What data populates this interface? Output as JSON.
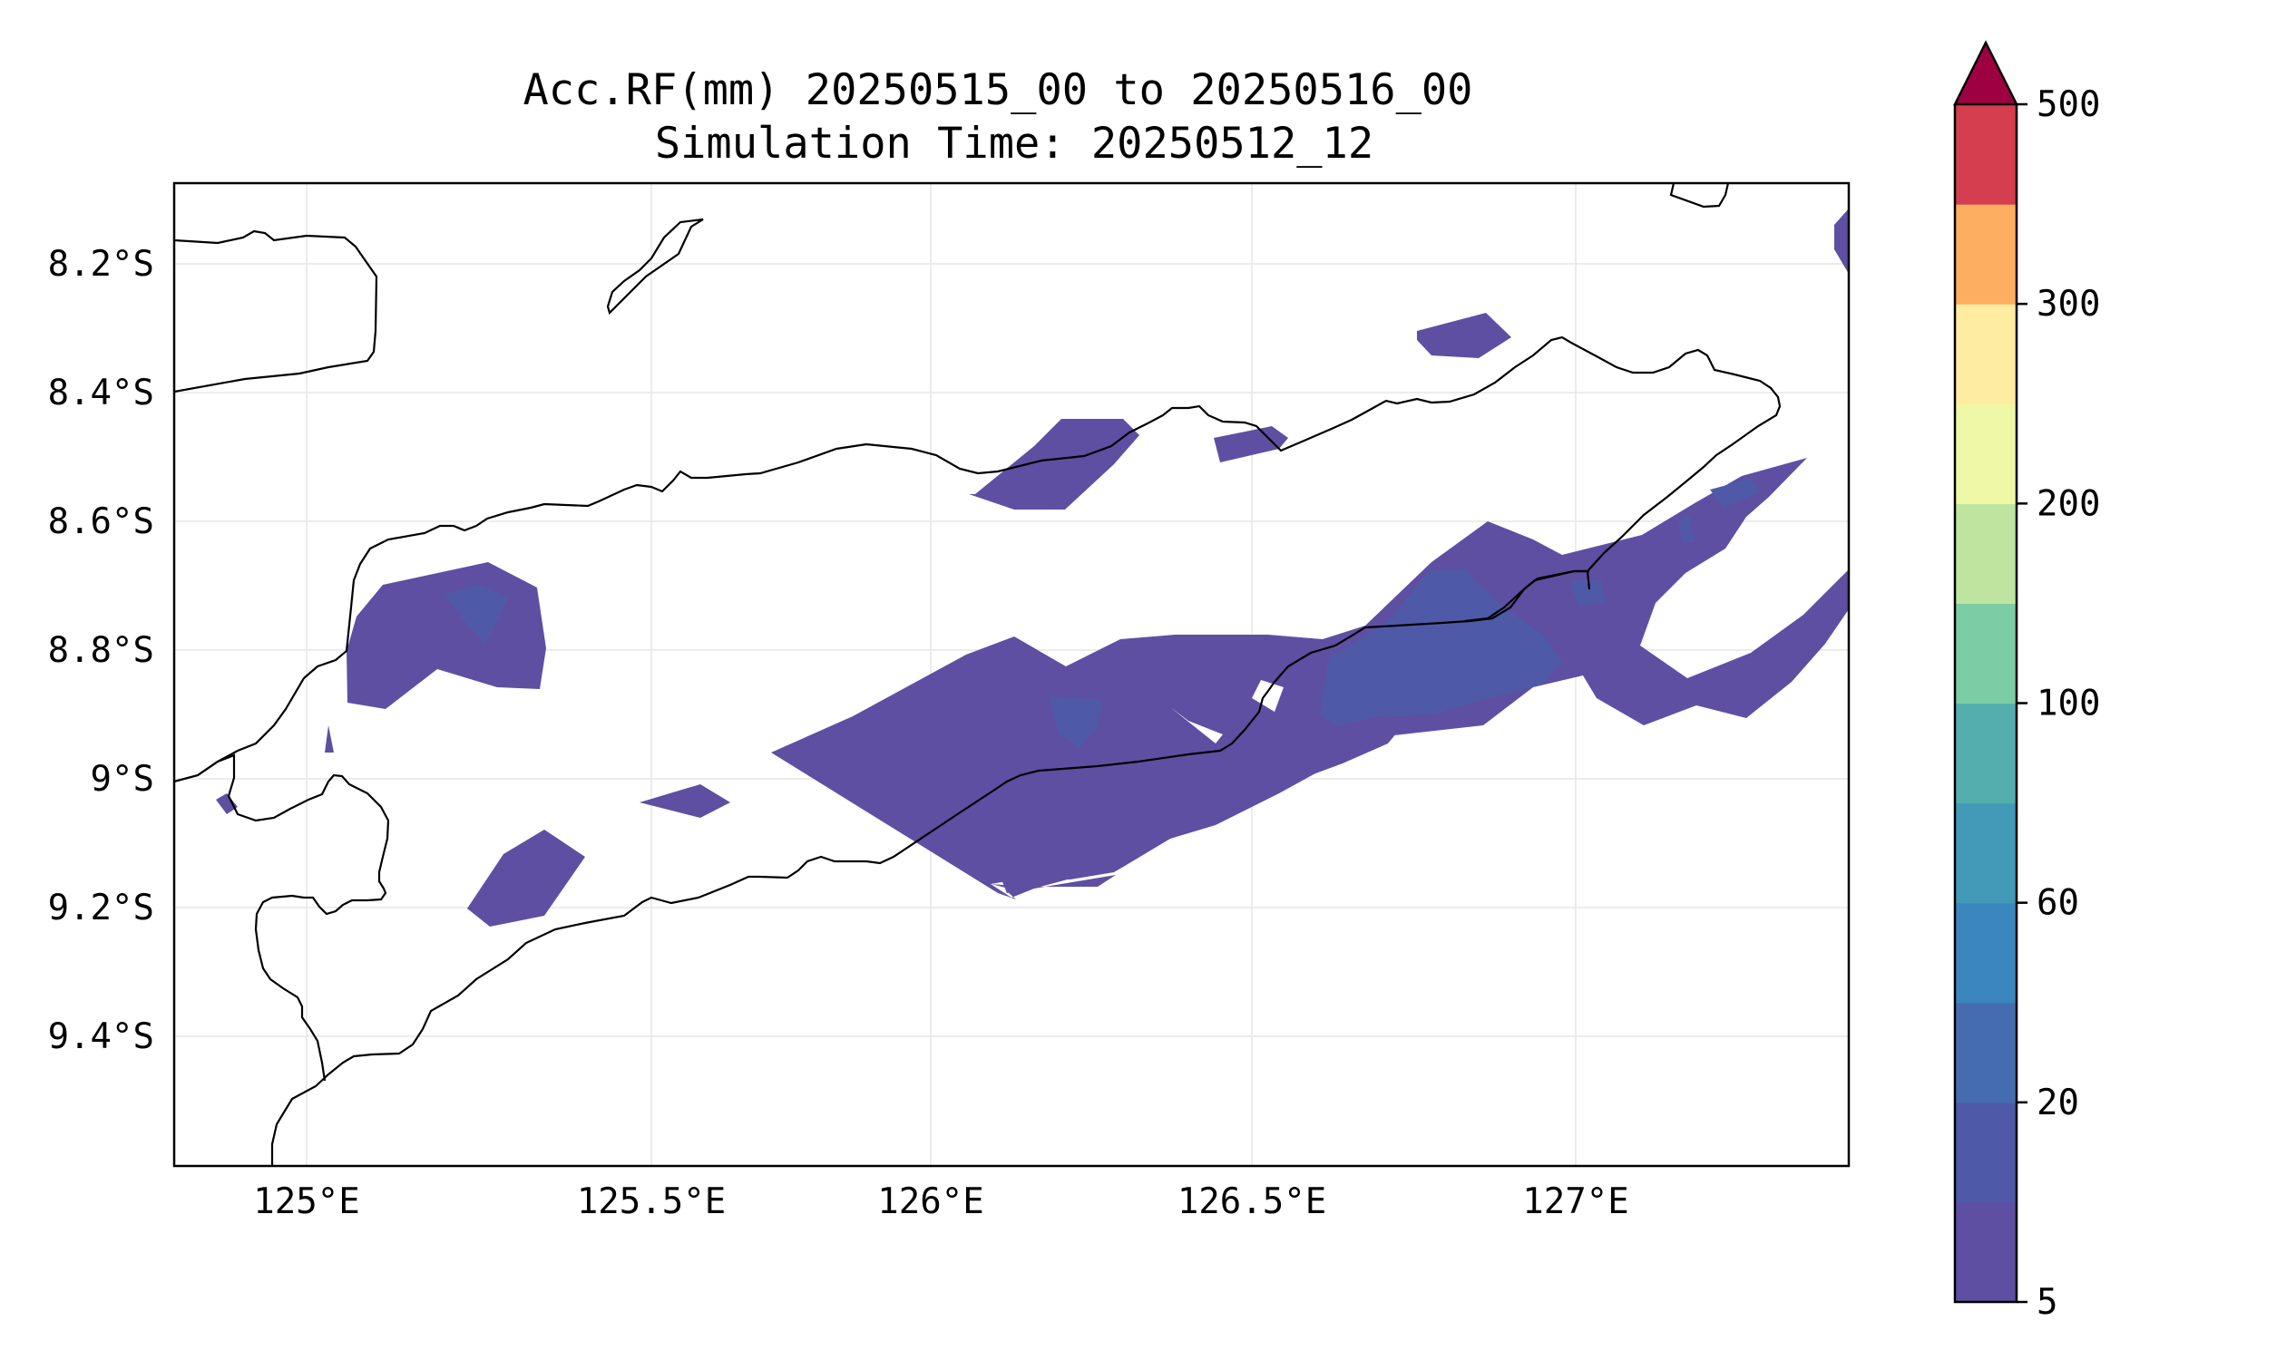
{
  "title": {
    "line1": "Acc.RF(mm) 20250515_00 to 20250516_00",
    "line2": "Simulation Time: 20250512_12"
  },
  "chart_data": {
    "type": "contourf-map",
    "x_ticks": [
      "125°E",
      "125.5°E",
      "126°E",
      "126.5°E",
      "127°E"
    ],
    "y_ticks": [
      "8.2°S",
      "8.4°S",
      "8.6°S",
      "8.8°S",
      "9°S",
      "9.2°S",
      "9.4°S"
    ],
    "lon_range": [
      124.83,
      127.42
    ],
    "lat_range": [
      -9.58,
      -8.08
    ],
    "grid": true,
    "colorbar": {
      "orientation": "vertical",
      "position": "right",
      "extend": "max",
      "levels": [
        5,
        10,
        20,
        40,
        60,
        80,
        100,
        150,
        200,
        250,
        300,
        400,
        500
      ],
      "tick_labels": [
        "5",
        "20",
        "60",
        "100",
        "200",
        "300",
        "500"
      ],
      "colors": [
        "#5e4fa2",
        "#4e5aa8",
        "#466cb0",
        "#3a86bd",
        "#4299b8",
        "#54aead",
        "#7ccca5",
        "#bee5a0",
        "#eff8a6",
        "#feeda0",
        "#fdae61",
        "#d53e4f"
      ],
      "over_color": "#9e0142"
    },
    "rain_fill": [
      "#5e4fa2",
      "#4e5aa8"
    ]
  }
}
